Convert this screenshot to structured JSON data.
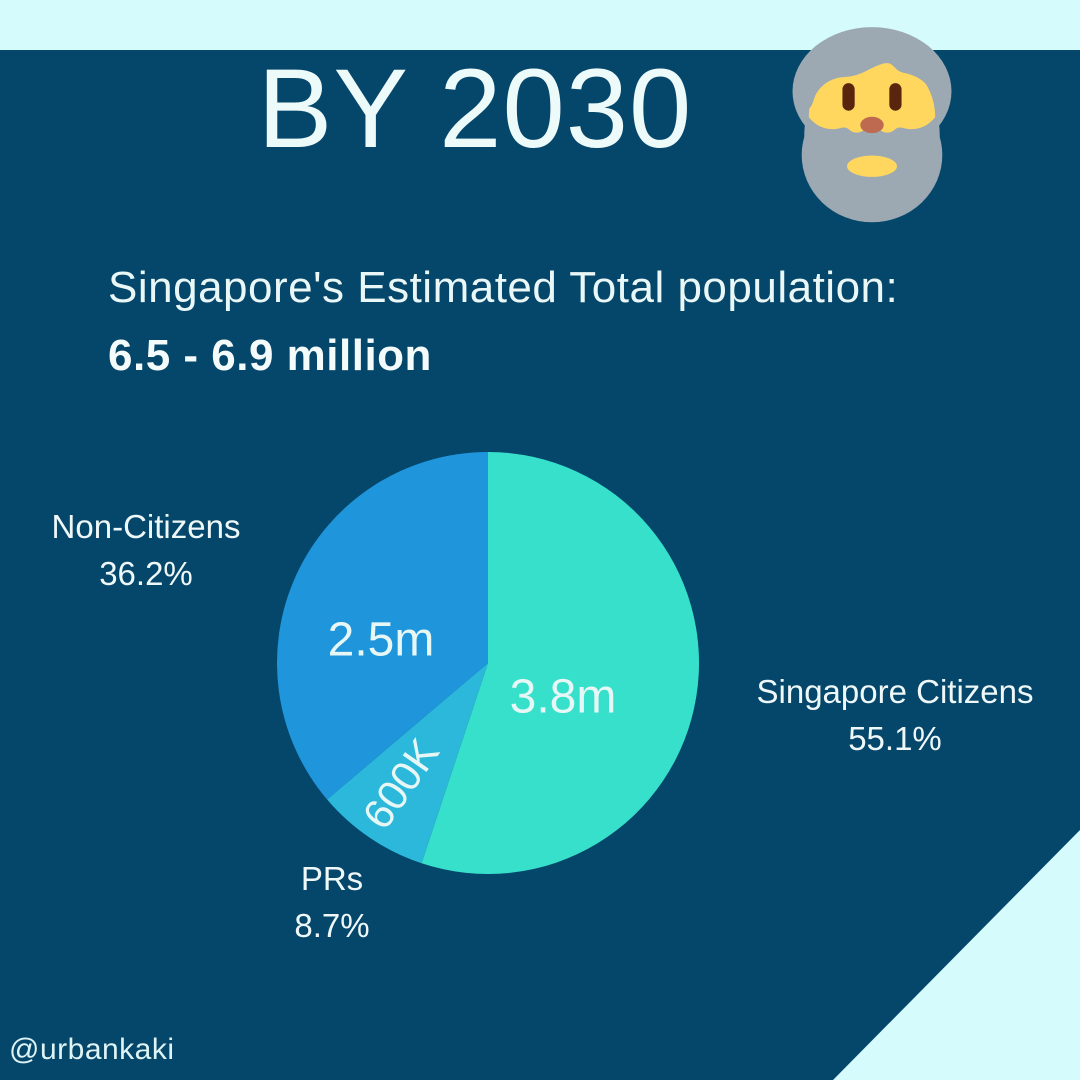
{
  "page": {
    "title": "BY 2030",
    "subtitle": "Singapore's Estimated Total population:",
    "subtitle_bold": "6.5 - 6.9 million",
    "credit": "@urbankaki"
  },
  "colors": {
    "background_navy": "#05466B",
    "accent_light_cyan": "#D6FBFD",
    "text_offwhite": "#EDFAFA"
  },
  "icons": {
    "header_emoji": "man-beard-emoji"
  },
  "chart_data": {
    "type": "pie",
    "title": "Singapore's estimated total population split by 2030",
    "start_angle_deg": 0,
    "direction": "clockwise",
    "legend_position": "outside-labels",
    "slices": [
      {
        "label": "Singapore Citizens",
        "percent": 55.1,
        "pct_label": "55.1%",
        "value_label": "3.8m",
        "color": "#37E0CB"
      },
      {
        "label": "PRs",
        "percent": 8.7,
        "pct_label": "8.7%",
        "value_label": "600K",
        "color": "#2BB8DA"
      },
      {
        "label": "Non-Citizens",
        "percent": 36.2,
        "pct_label": "36.2%",
        "value_label": "2.5m",
        "color": "#1F96DB"
      }
    ]
  }
}
